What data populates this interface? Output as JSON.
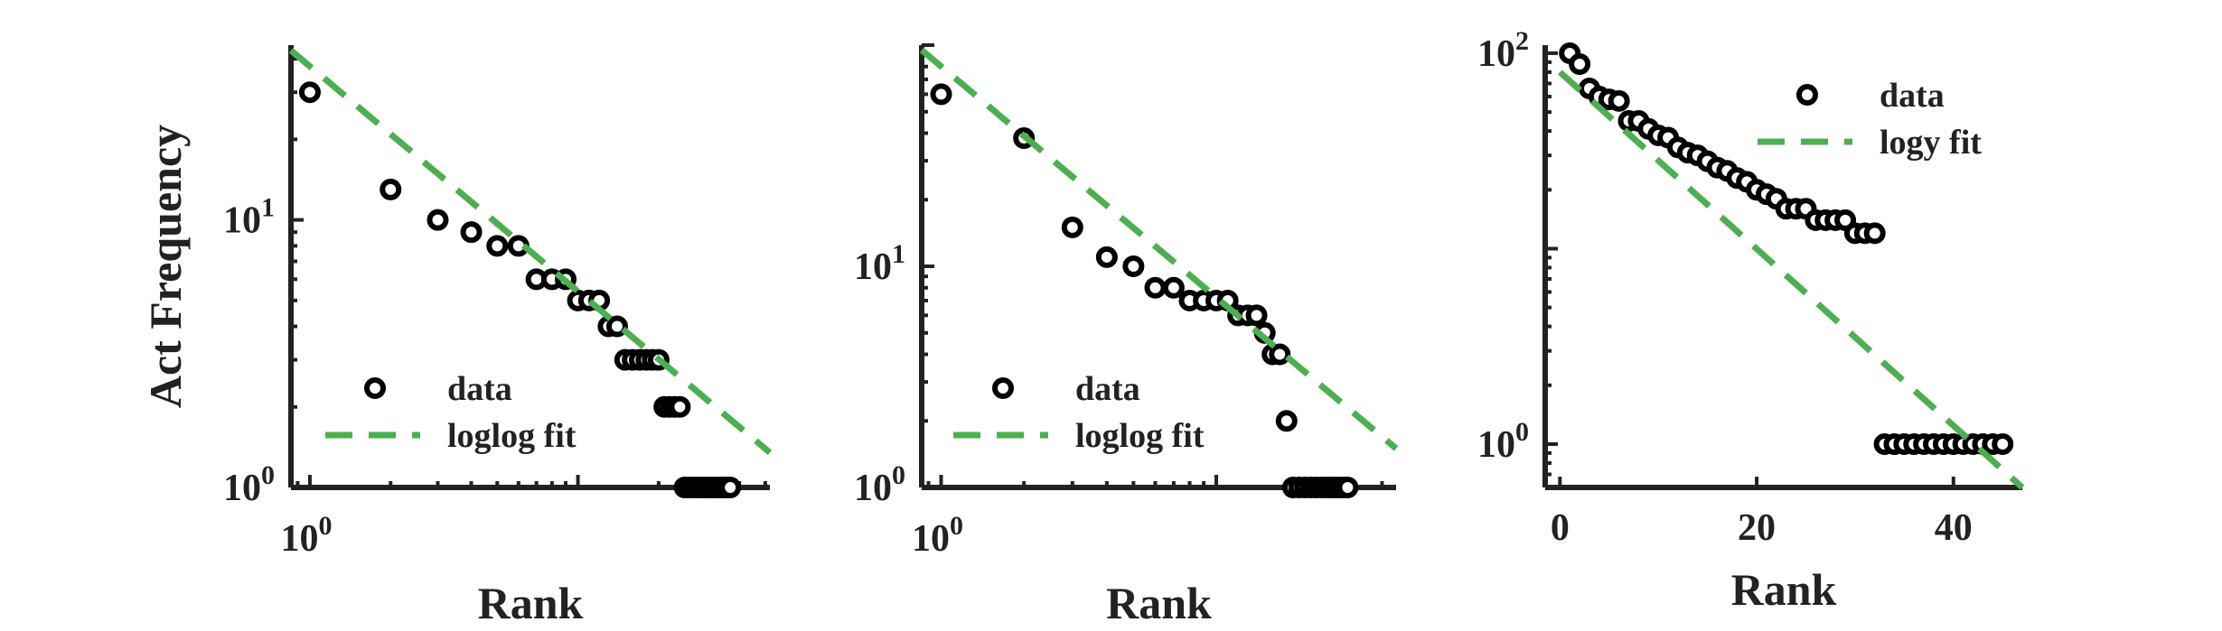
{
  "colors": {
    "marker": "#000000",
    "fit": "#4caf50",
    "axis": "#222222"
  },
  "chart_data": [
    {
      "type": "scatter",
      "scale": "loglog",
      "xlabel": "Rank",
      "ylabel": "Act Frequency",
      "xlim": [
        0.85,
        52
      ],
      "ylim": [
        1,
        45
      ],
      "xticks": [
        {
          "value": 1,
          "base": "10",
          "exp": "0"
        }
      ],
      "yticks": [
        {
          "value": 1,
          "base": "10",
          "exp": "0"
        },
        {
          "value": 10,
          "base": "10",
          "exp": "1"
        }
      ],
      "legend": {
        "position": "bottom-left",
        "entries": [
          "data",
          "loglog fit"
        ]
      },
      "series": [
        {
          "name": "data",
          "style": "marker",
          "x": [
            1,
            2,
            3,
            4,
            5,
            6,
            7,
            8,
            9,
            10,
            11,
            12,
            13,
            14,
            15,
            16,
            17,
            18,
            19,
            20,
            21,
            22,
            23,
            24,
            25,
            26,
            27,
            28,
            29,
            30,
            31,
            32,
            33,
            34,
            35,
            36,
            37
          ],
          "y": [
            30,
            13,
            10,
            9,
            8,
            8,
            6,
            6,
            6,
            5,
            5,
            5,
            4,
            4,
            3,
            3,
            3,
            3,
            3,
            3,
            2,
            2,
            2,
            2,
            1,
            1,
            1,
            1,
            1,
            1,
            1,
            1,
            1,
            1,
            1,
            1,
            1
          ]
        },
        {
          "name": "loglog fit",
          "style": "dashed",
          "x": [
            0.85,
            52
          ],
          "y": [
            43,
            1.35
          ]
        }
      ]
    },
    {
      "type": "scatter",
      "scale": "loglog",
      "xlabel": "Rank",
      "ylabel": "",
      "xlim": [
        0.85,
        45
      ],
      "ylim": [
        1,
        100
      ],
      "xticks": [
        {
          "value": 1,
          "base": "10",
          "exp": "0"
        }
      ],
      "yticks": [
        {
          "value": 1,
          "base": "10",
          "exp": "0"
        },
        {
          "value": 10,
          "base": "10",
          "exp": "1"
        }
      ],
      "legend": {
        "position": "bottom-left",
        "entries": [
          "data",
          "loglog fit"
        ]
      },
      "series": [
        {
          "name": "data",
          "style": "marker",
          "x": [
            1,
            2,
            3,
            4,
            5,
            6,
            7,
            8,
            9,
            10,
            11,
            12,
            13,
            14,
            15,
            16,
            17,
            18,
            19,
            20,
            21,
            22,
            23,
            24,
            25,
            26,
            27,
            28,
            29,
            30
          ],
          "y": [
            60,
            38,
            15,
            11,
            10,
            8,
            8,
            7,
            7,
            7,
            7,
            6,
            6,
            6,
            5,
            4,
            4,
            2,
            1,
            1,
            1,
            1,
            1,
            1,
            1,
            1,
            1,
            1,
            1,
            1
          ]
        },
        {
          "name": "loglog fit",
          "style": "dashed",
          "x": [
            0.85,
            45
          ],
          "y": [
            95,
            1.5
          ]
        }
      ]
    },
    {
      "type": "scatter",
      "scale": "semilogy",
      "xlabel": "Rank",
      "ylabel": "",
      "xlim": [
        -1.5,
        47
      ],
      "ylim": [
        0.6,
        110
      ],
      "xticks": [
        {
          "value": 0,
          "label": "0"
        },
        {
          "value": 20,
          "label": "20"
        },
        {
          "value": 40,
          "label": "40"
        }
      ],
      "yticks": [
        {
          "value": 1,
          "base": "10",
          "exp": "0"
        },
        {
          "value": 100,
          "base": "10",
          "exp": "2"
        }
      ],
      "legend": {
        "position": "top-right",
        "entries": [
          "data",
          "logy fit"
        ]
      },
      "series": [
        {
          "name": "data",
          "style": "marker",
          "x": [
            1,
            2,
            3,
            4,
            5,
            6,
            7,
            8,
            9,
            10,
            11,
            12,
            13,
            14,
            15,
            16,
            17,
            18,
            19,
            20,
            21,
            22,
            23,
            24,
            25,
            26,
            27,
            28,
            29,
            30,
            31,
            32,
            33,
            34,
            35,
            36,
            37,
            38,
            39,
            40,
            41,
            42,
            43,
            44,
            45
          ],
          "y": [
            100,
            88,
            66,
            60,
            58,
            57,
            45,
            45,
            41,
            38,
            37,
            33,
            31,
            30,
            28,
            26,
            25,
            23,
            22,
            20,
            19,
            18,
            16,
            16,
            16,
            14,
            14,
            14,
            14,
            12,
            12,
            12,
            1,
            1,
            1,
            1,
            1,
            1,
            1,
            1,
            1,
            1,
            1,
            1,
            1
          ]
        },
        {
          "name": "logy fit",
          "style": "dashed",
          "x": [
            0,
            47
          ],
          "y": [
            80,
            0.6
          ]
        }
      ]
    }
  ]
}
